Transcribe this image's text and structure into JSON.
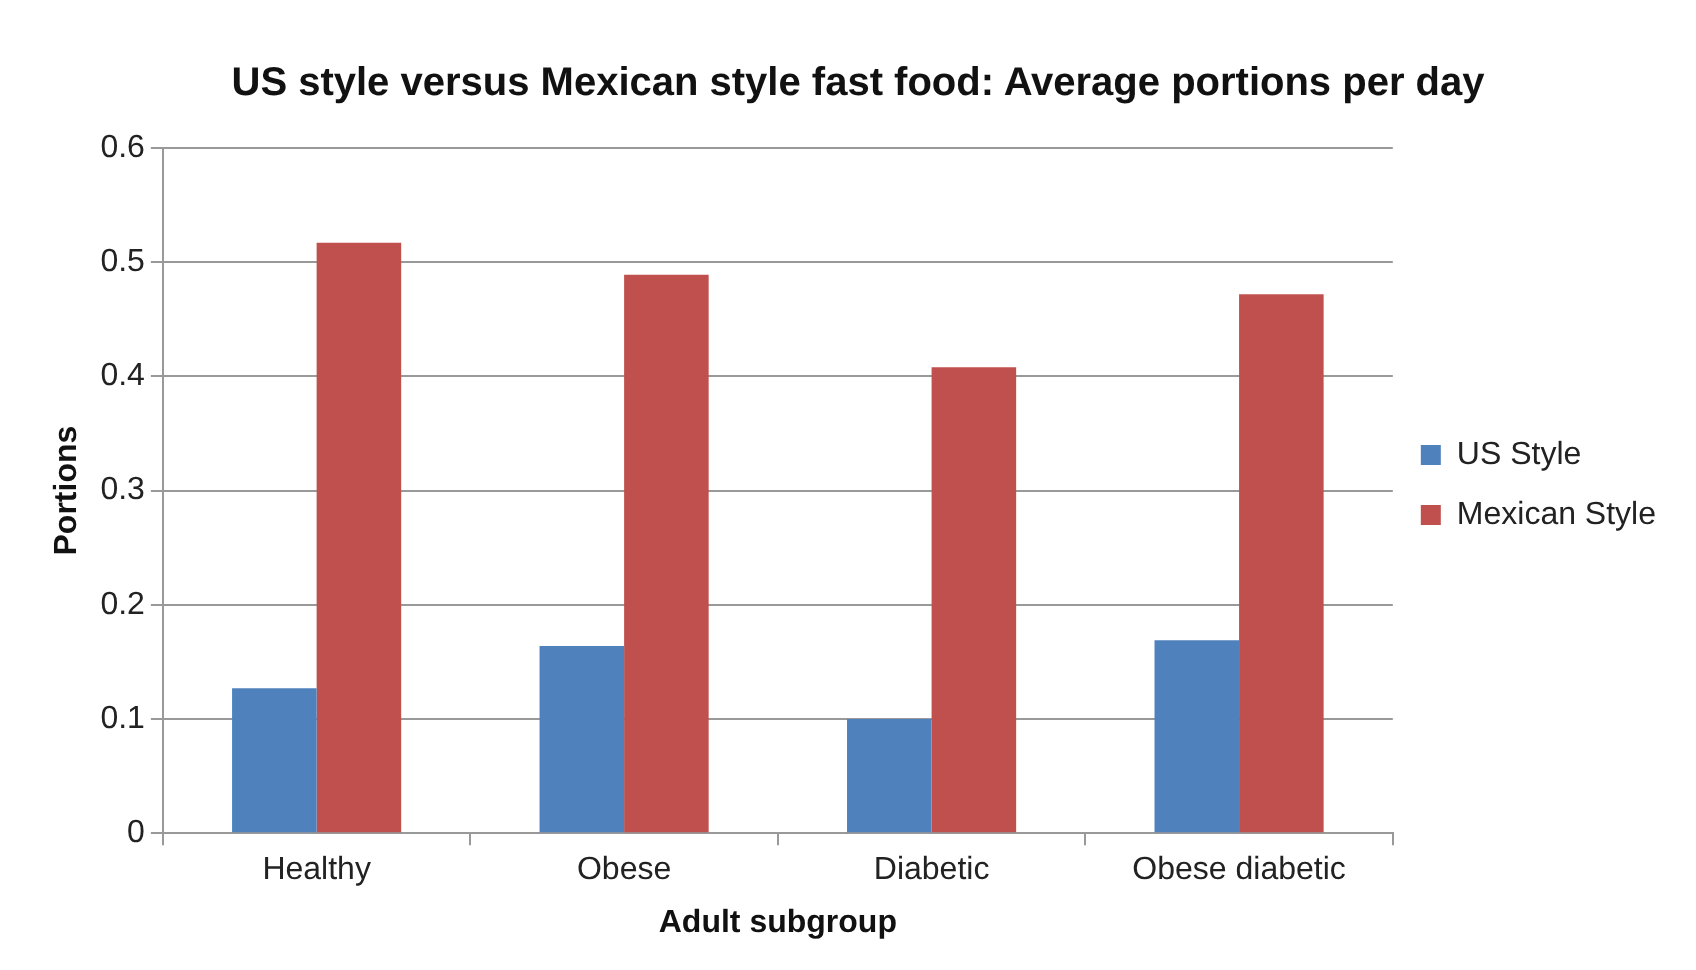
{
  "chart_data": {
    "type": "bar",
    "title": "US style versus Mexican style fast food: Average portions per day",
    "xlabel": "Adult subgroup",
    "ylabel": "Portions",
    "categories": [
      "Healthy",
      "Obese",
      "Diabetic",
      "Obese diabetic"
    ],
    "series": [
      {
        "name": "US Style",
        "color": "#4f81bd",
        "values": [
          0.127,
          0.164,
          0.1,
          0.169
        ]
      },
      {
        "name": "Mexican Style",
        "color": "#c0504d",
        "values": [
          0.517,
          0.489,
          0.408,
          0.472
        ]
      }
    ],
    "ylim": [
      0,
      0.6
    ],
    "yticks": [
      0,
      0.1,
      0.2,
      0.3,
      0.4,
      0.5,
      0.6
    ],
    "grid": "y",
    "legend": "right"
  }
}
